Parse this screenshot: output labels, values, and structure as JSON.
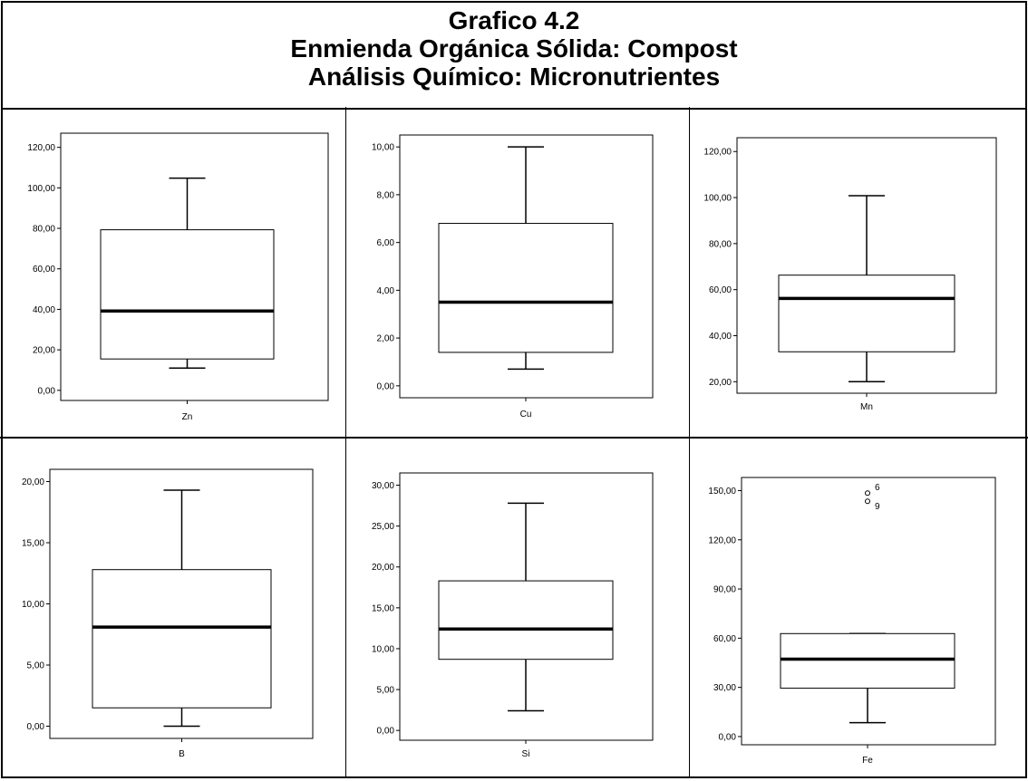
{
  "header": {
    "line1": "Grafico 4.2",
    "line2": "Enmienda Orgánica Sólida: Compost",
    "line3": "Análisis Químico: Micronutrientes"
  },
  "chart_data": [
    {
      "type": "boxplot",
      "xlabel": "Zn",
      "ylim": [
        -5,
        127
      ],
      "yticks": [
        "0,00",
        "20,00",
        "40,00",
        "60,00",
        "80,00",
        "100,00",
        "120,00"
      ],
      "ytick_values": [
        0,
        20,
        40,
        60,
        80,
        100,
        120
      ],
      "whisker_low": 11,
      "q1": 15.5,
      "median": 39.2,
      "q3": 79.3,
      "whisker_high": 104.8,
      "outliers": []
    },
    {
      "type": "boxplot",
      "xlabel": "Cu",
      "ylim": [
        -0.5,
        10.5
      ],
      "yticks": [
        "0,00",
        "2,00",
        "4,00",
        "6,00",
        "8,00",
        "10,00"
      ],
      "ytick_values": [
        0,
        2,
        4,
        6,
        8,
        10
      ],
      "whisker_low": 0.7,
      "q1": 1.4,
      "median": 3.5,
      "q3": 6.8,
      "whisker_high": 10.0,
      "outliers": []
    },
    {
      "type": "boxplot",
      "xlabel": "Mn",
      "ylim": [
        15,
        126
      ],
      "yticks": [
        "20,00",
        "40,00",
        "60,00",
        "80,00",
        "100,00",
        "120,00"
      ],
      "ytick_values": [
        20,
        40,
        60,
        80,
        100,
        120
      ],
      "whisker_low": 20,
      "q1": 33,
      "median": 56.2,
      "q3": 66.3,
      "whisker_high": 100.8,
      "outliers": []
    },
    {
      "type": "boxplot",
      "xlabel": "B",
      "ylim": [
        -1,
        21
      ],
      "yticks": [
        "0,00",
        "5,00",
        "10,00",
        "15,00",
        "20,00"
      ],
      "ytick_values": [
        0,
        5,
        10,
        15,
        20
      ],
      "whisker_low": 0,
      "q1": 1.5,
      "median": 8.1,
      "q3": 12.8,
      "whisker_high": 19.3,
      "outliers": []
    },
    {
      "type": "boxplot",
      "xlabel": "Si",
      "ylim": [
        -1.2,
        31.5
      ],
      "yticks": [
        "0,00",
        "5,00",
        "10,00",
        "15,00",
        "20,00",
        "25,00",
        "30,00"
      ],
      "ytick_values": [
        0,
        5,
        10,
        15,
        20,
        25,
        30
      ],
      "whisker_low": 2.4,
      "q1": 8.7,
      "median": 12.4,
      "q3": 18.3,
      "whisker_high": 27.8,
      "outliers": []
    },
    {
      "type": "boxplot",
      "xlabel": "Fe",
      "ylim": [
        -5,
        158
      ],
      "yticks": [
        "0,00",
        "30,00",
        "60,00",
        "90,00",
        "120,00",
        "150,00"
      ],
      "ytick_values": [
        0,
        30,
        60,
        90,
        120,
        150
      ],
      "whisker_low": 8.5,
      "q1": 29.5,
      "median": 47.2,
      "q3": 62.8,
      "whisker_high": 62.8,
      "outliers": [
        {
          "value": 148.5,
          "label": "6"
        },
        {
          "value": 143.5,
          "label": "9"
        }
      ]
    }
  ]
}
